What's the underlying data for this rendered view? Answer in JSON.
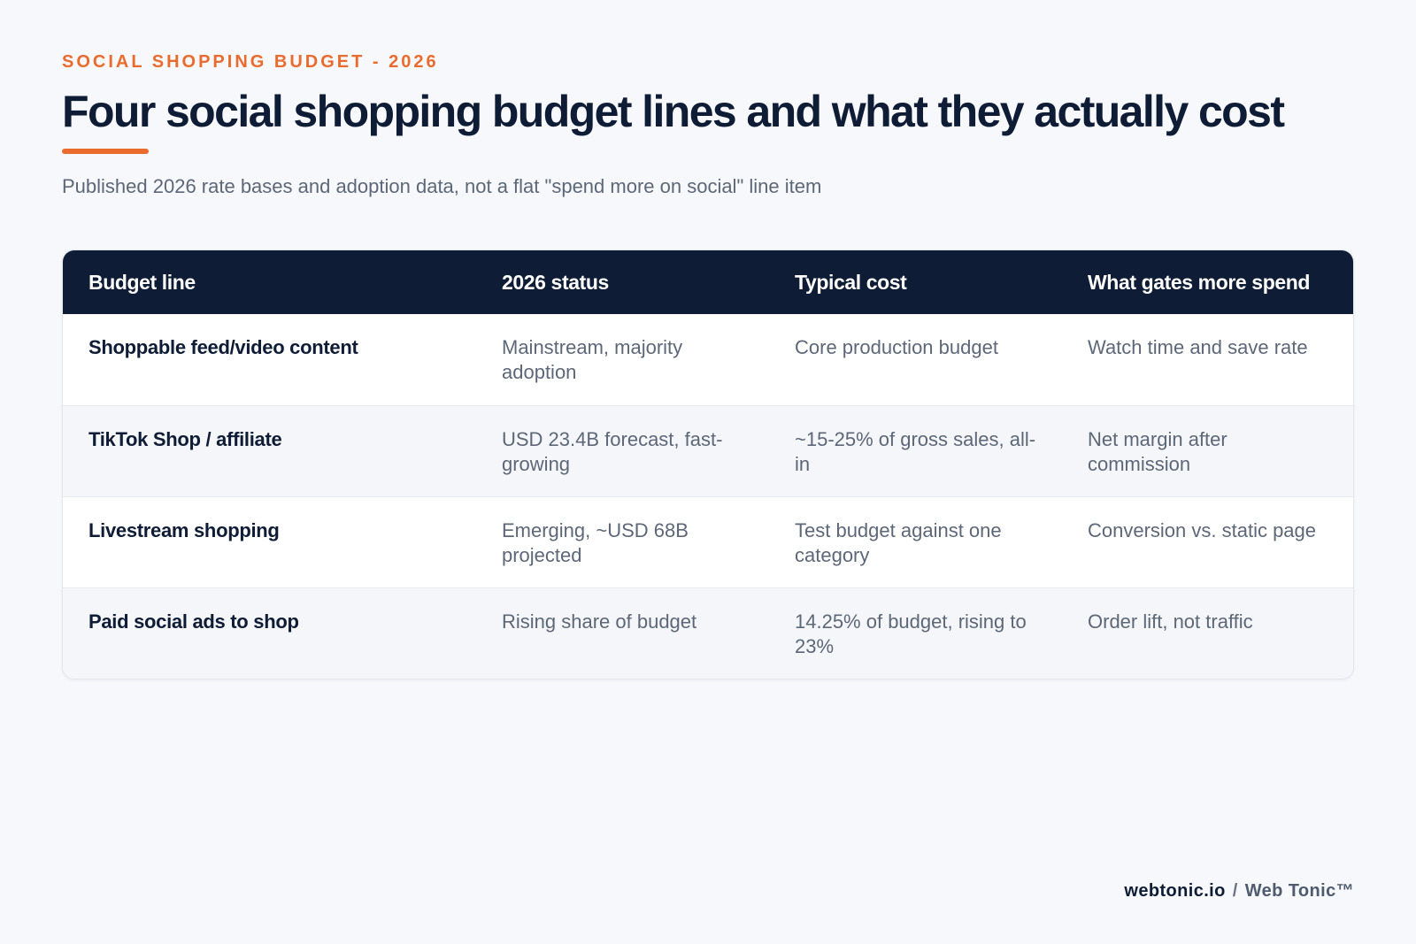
{
  "header": {
    "eyebrow": "SOCIAL SHOPPING BUDGET - 2026",
    "title": "Four social shopping budget lines and what they actually cost",
    "subtitle": "Published 2026 rate bases and adoption data, not a flat \"spend more on social\" line item"
  },
  "table": {
    "columns": [
      "Budget line",
      "2026 status",
      "Typical cost",
      "What gates more spend"
    ],
    "rows": [
      [
        "Shoppable feed/video content",
        "Mainstream, majority adoption",
        "Core production budget",
        "Watch time and save rate"
      ],
      [
        "TikTok Shop / affiliate",
        "USD 23.4B forecast, fast-growing",
        "~15-25% of gross sales, all-in",
        "Net margin after commission"
      ],
      [
        "Livestream shopping",
        "Emerging, ~USD 68B projected",
        "Test budget against one category",
        "Conversion vs. static page"
      ],
      [
        "Paid social ads to shop",
        "Rising share of budget",
        "14.25% of budget, rising to 23%",
        "Order lift, not traffic"
      ]
    ]
  },
  "footer": {
    "site": "webtonic.io",
    "separator": "/",
    "brand": "Web Tonic™"
  },
  "colors": {
    "accent": "#ea6b2e",
    "navy": "#0f1c35",
    "background": "#f6f8fb",
    "muted_text": "#5d6778"
  }
}
